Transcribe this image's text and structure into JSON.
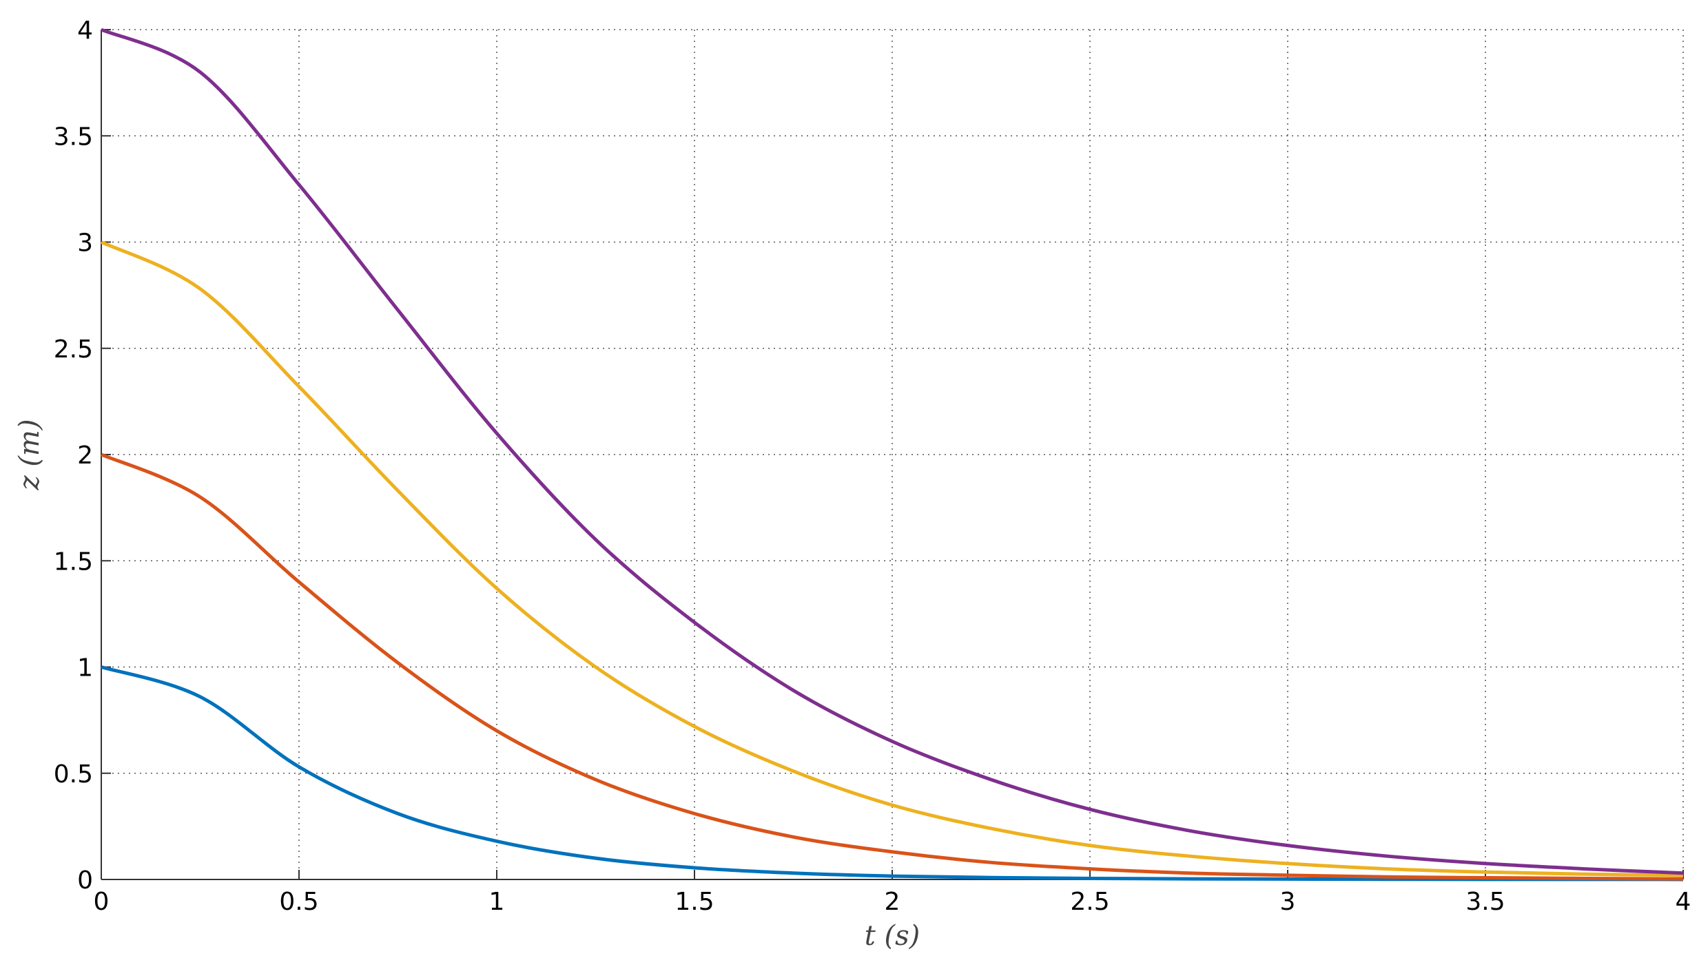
{
  "chart_data": {
    "type": "line",
    "x_label": "t (s)",
    "y_label": "z (m)",
    "x": [
      0,
      0.25,
      0.5,
      0.75,
      1,
      1.25,
      1.5,
      1.75,
      2,
      2.25,
      2.5,
      2.75,
      3,
      3.25,
      3.5,
      3.75,
      4
    ],
    "series": [
      {
        "color": "#0072bd",
        "values": [
          1,
          0.86,
          0.53,
          0.31,
          0.18,
          0.1,
          0.055,
          0.03,
          0.016,
          0.009,
          0.005,
          0.003,
          0.002,
          0.001,
          0.0005,
          0.0003,
          0.0002
        ]
      },
      {
        "color": "#d95319",
        "values": [
          2,
          1.8,
          1.4,
          1.02,
          0.7,
          0.47,
          0.31,
          0.2,
          0.13,
          0.08,
          0.05,
          0.03,
          0.02,
          0.012,
          0.008,
          0.005,
          0.003
        ]
      },
      {
        "color": "#edb120",
        "values": [
          3,
          2.78,
          2.32,
          1.83,
          1.37,
          1.0,
          0.72,
          0.51,
          0.35,
          0.24,
          0.16,
          0.11,
          0.075,
          0.05,
          0.035,
          0.025,
          0.02
        ]
      },
      {
        "color": "#7e2f8e",
        "values": [
          4,
          3.8,
          3.27,
          2.68,
          2.1,
          1.6,
          1.21,
          0.89,
          0.65,
          0.47,
          0.33,
          0.23,
          0.16,
          0.11,
          0.075,
          0.05,
          0.03
        ]
      }
    ],
    "xlim": [
      0,
      4
    ],
    "ylim": [
      0,
      4
    ],
    "xticks": [
      0,
      0.5,
      1,
      1.5,
      2,
      2.5,
      3,
      3.5,
      4
    ],
    "yticks": [
      0,
      0.5,
      1,
      1.5,
      2,
      2.5,
      3,
      3.5,
      4
    ],
    "grid": true
  }
}
